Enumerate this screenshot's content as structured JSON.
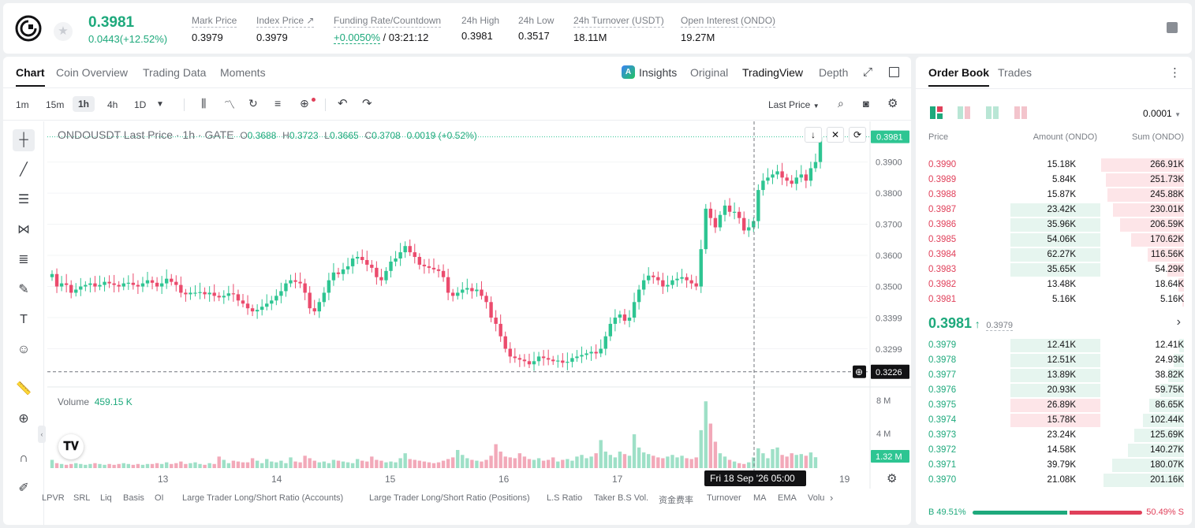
{
  "header": {
    "price": "0.3981",
    "change": "0.0443(+12.52%)",
    "stats": [
      {
        "label": "Mark Price",
        "value": "0.3979"
      },
      {
        "label": "Index Price ↗",
        "value": "0.3979"
      },
      {
        "label": "Funding Rate/Countdown",
        "value_green": "+0.0050%",
        "value": " / 03:21:12"
      },
      {
        "label": "24h High",
        "value": "0.3981"
      },
      {
        "label": "24h Low",
        "value": "0.3517"
      },
      {
        "label": "24h Turnover (USDT)",
        "value": "18.11M"
      },
      {
        "label": "Open Interest (ONDO)",
        "value": "19.27M"
      }
    ]
  },
  "chart_tabs": [
    "Chart",
    "Coin Overview",
    "Trading Data",
    "Moments"
  ],
  "view_tabs": [
    "Insights",
    "Original",
    "TradingView",
    "Depth"
  ],
  "intervals": [
    "1m",
    "15m",
    "1h",
    "4h",
    "1D"
  ],
  "toolbar": {
    "price_type": "Last Price"
  },
  "legend": {
    "symbol": "ONDOUSDT Last Price · 1h · GATE",
    "o_label": "O",
    "o": "0.3688",
    "h_label": "H",
    "h": "0.3723",
    "l_label": "L",
    "l": "0.3665",
    "c_label": "C",
    "c": "0.3708",
    "chg": "0.0019 (+0.52%)"
  },
  "volume": {
    "label": "Volume",
    "value": "459.15 K"
  },
  "crosshair": {
    "price": "0.3226",
    "time": "Fri 18 Sep '26   05:00"
  },
  "last_price_tag": "0.3981",
  "vol_tag": "1.32 M",
  "indicators": [
    "LPVR",
    "SRL",
    "Liq",
    "Basis",
    "OI",
    "Large Trader Long/Short Ratio (Accounts)",
    "Large Trader Long/Short Ratio (Positions)",
    "L.S Ratio",
    "Taker B.S Vol.",
    "资金费率",
    "Turnover",
    "MA",
    "EMA",
    "Volu"
  ],
  "chart_data": {
    "type": "candlestick",
    "x_ticks": [
      "13",
      "14",
      "15",
      "16",
      "17",
      "18",
      "19"
    ],
    "y_ticks": [
      "0.3900",
      "0.3800",
      "0.3700",
      "0.3600",
      "0.3500",
      "0.3399",
      "0.3299"
    ],
    "vol_ticks": [
      "8 M",
      "4 M"
    ],
    "ylim": [
      0.3195,
      0.3985
    ],
    "closes": [
      0.354,
      0.35,
      0.351,
      0.3505,
      0.348,
      0.349,
      0.35,
      0.3505,
      0.351,
      0.35,
      0.3505,
      0.3515,
      0.351,
      0.3505,
      0.35,
      0.351,
      0.3512,
      0.3505,
      0.35,
      0.351,
      0.352,
      0.3512,
      0.35,
      0.351,
      0.3525,
      0.3515,
      0.3505,
      0.348,
      0.3475,
      0.348,
      0.348,
      0.3482,
      0.3475,
      0.348,
      0.347,
      0.3465,
      0.347,
      0.3478,
      0.3475,
      0.3455,
      0.3445,
      0.343,
      0.342,
      0.3425,
      0.3435,
      0.3445,
      0.3455,
      0.347,
      0.3485,
      0.351,
      0.352,
      0.3515,
      0.351,
      0.348,
      0.343,
      0.342,
      0.345,
      0.348,
      0.352,
      0.3545,
      0.354,
      0.3555,
      0.3565,
      0.359,
      0.3595,
      0.3585,
      0.357,
      0.356,
      0.353,
      0.352,
      0.355,
      0.358,
      0.359,
      0.361,
      0.363,
      0.361,
      0.3595,
      0.357,
      0.3565,
      0.356,
      0.3555,
      0.355,
      0.353,
      0.348,
      0.347,
      0.348,
      0.349,
      0.3495,
      0.3485,
      0.349,
      0.347,
      0.345,
      0.34,
      0.338,
      0.334,
      0.33,
      0.3275,
      0.327,
      0.3265,
      0.326,
      0.325,
      0.326,
      0.3275,
      0.327,
      0.3265,
      0.326,
      0.3262,
      0.3255,
      0.3258,
      0.327,
      0.3275,
      0.328,
      0.3285,
      0.329,
      0.3285,
      0.33,
      0.334,
      0.338,
      0.34,
      0.341,
      0.339,
      0.34,
      0.345,
      0.349,
      0.352,
      0.3535,
      0.353,
      0.352,
      0.35,
      0.3505,
      0.352,
      0.3525,
      0.353,
      0.352,
      0.351,
      0.35,
      0.362,
      0.375,
      0.372,
      0.369,
      0.373,
      0.376,
      0.374,
      0.374,
      0.372,
      0.368,
      0.369,
      0.371,
      0.381,
      0.384,
      0.385,
      0.386,
      0.387,
      0.385,
      0.384,
      0.383,
      0.385,
      0.386,
      0.384,
      0.388,
      0.39,
      0.3981
    ],
    "volumes": [
      1.0,
      0.6,
      0.5,
      0.4,
      0.5,
      0.6,
      0.5,
      0.4,
      0.5,
      0.6,
      0.5,
      0.4,
      0.5,
      0.4,
      0.5,
      0.6,
      0.5,
      0.4,
      0.5,
      0.4,
      0.5,
      0.5,
      0.6,
      0.5,
      0.7,
      0.5,
      0.6,
      0.8,
      0.5,
      0.6,
      0.7,
      0.5,
      0.4,
      0.6,
      0.5,
      1.4,
      1.0,
      0.6,
      0.9,
      0.8,
      0.7,
      0.7,
      1.2,
      0.9,
      0.6,
      1.1,
      0.8,
      0.7,
      0.9,
      0.6,
      1.3,
      0.8,
      0.7,
      1.5,
      1.2,
      0.9,
      0.7,
      0.8,
      0.6,
      1.0,
      0.9,
      0.8,
      0.7,
      0.6,
      1.1,
      0.9,
      0.8,
      1.4,
      1.0,
      0.9,
      0.7,
      0.8,
      0.7,
      1.2,
      1.8,
      1.1,
      1.0,
      0.9,
      0.8,
      0.7,
      0.6,
      0.7,
      0.9,
      1.1,
      1.3,
      2.2,
      1.6,
      1.2,
      1.0,
      0.9,
      0.8,
      1.0,
      1.5,
      2.9,
      2.0,
      1.4,
      1.3,
      1.2,
      1.8,
      1.4,
      1.1,
      1.0,
      1.2,
      0.9,
      1.0,
      1.3,
      0.8,
      1.0,
      1.1,
      0.9,
      1.4,
      1.6,
      1.2,
      1.4,
      1.8,
      3.4,
      2.0,
      1.6,
      1.3,
      2.0,
      1.7,
      1.5,
      4.1,
      2.5,
      1.9,
      1.7,
      1.5,
      1.3,
      1.2,
      1.4,
      1.6,
      1.3,
      1.5,
      1.2,
      1.1,
      1.3,
      4.6,
      8.1,
      5.4,
      3.2,
      1.8,
      1.4,
      1.0,
      0.8,
      0.6,
      0.5,
      0.7,
      1.3,
      2.4,
      1.8,
      1.2,
      2.3,
      2.5,
      1.6,
      1.4,
      1.8,
      1.6,
      1.7,
      1.5,
      1.9,
      1.32
    ]
  },
  "orderbook": {
    "tabs": [
      "Order Book",
      "Trades"
    ],
    "tick": "0.0001",
    "cols": [
      "Price",
      "Amount (ONDO)",
      "Sum (ONDO)"
    ],
    "asks": [
      [
        "0.3990",
        "15.18K",
        "266.91K"
      ],
      [
        "0.3989",
        "5.84K",
        "251.73K"
      ],
      [
        "0.3988",
        "15.87K",
        "245.88K"
      ],
      [
        "0.3987",
        "23.42K",
        "230.01K"
      ],
      [
        "0.3986",
        "35.96K",
        "206.59K"
      ],
      [
        "0.3985",
        "54.06K",
        "170.62K"
      ],
      [
        "0.3984",
        "62.27K",
        "116.56K"
      ],
      [
        "0.3983",
        "35.65K",
        "54.29K"
      ],
      [
        "0.3982",
        "13.48K",
        "18.64K"
      ],
      [
        "0.3981",
        "5.16K",
        "5.16K"
      ]
    ],
    "mid": {
      "price": "0.3981",
      "mark": "0.3979"
    },
    "bids": [
      [
        "0.3979",
        "12.41K",
        "12.41K"
      ],
      [
        "0.3978",
        "12.51K",
        "24.93K"
      ],
      [
        "0.3977",
        "13.89K",
        "38.82K"
      ],
      [
        "0.3976",
        "20.93K",
        "59.75K"
      ],
      [
        "0.3975",
        "26.89K",
        "86.65K"
      ],
      [
        "0.3974",
        "15.78K",
        "102.44K"
      ],
      [
        "0.3973",
        "23.24K",
        "125.69K"
      ],
      [
        "0.3972",
        "14.58K",
        "140.27K"
      ],
      [
        "0.3971",
        "39.79K",
        "180.07K"
      ],
      [
        "0.3970",
        "21.08K",
        "201.16K"
      ]
    ],
    "buy": "B 49.51%",
    "sell": "50.49% S"
  }
}
